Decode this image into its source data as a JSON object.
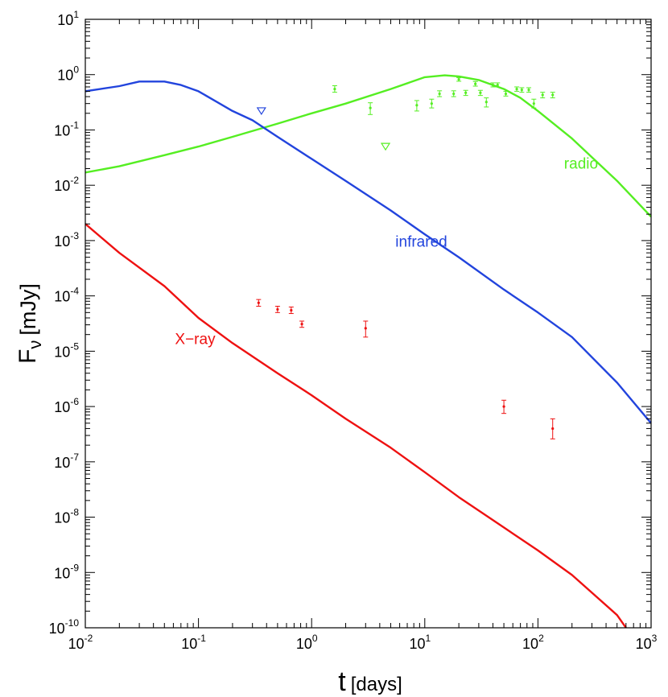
{
  "chart_data": {
    "type": "line",
    "xscale": "log",
    "yscale": "log",
    "xlim": [
      0.01,
      1000
    ],
    "ylim": [
      1e-10,
      10
    ],
    "xlabel": {
      "main": "t",
      "unit": "[days]"
    },
    "ylabel": {
      "main": "F",
      "sub": "ν",
      "unit": "[mJy]"
    },
    "x_ticks": [
      {
        "base": "10",
        "exp": "-2",
        "value": 0.01
      },
      {
        "base": "10",
        "exp": "-1",
        "value": 0.1
      },
      {
        "base": "10",
        "exp": "0",
        "value": 1
      },
      {
        "base": "10",
        "exp": "1",
        "value": 10
      },
      {
        "base": "10",
        "exp": "2",
        "value": 100
      },
      {
        "base": "10",
        "exp": "3",
        "value": 1000
      }
    ],
    "y_ticks": [
      {
        "base": "10",
        "exp": "1",
        "value": 10
      },
      {
        "base": "10",
        "exp": "0",
        "value": 1
      },
      {
        "base": "10",
        "exp": "-1",
        "value": 0.1
      },
      {
        "base": "10",
        "exp": "-2",
        "value": 0.01
      },
      {
        "base": "10",
        "exp": "-3",
        "value": 0.001
      },
      {
        "base": "10",
        "exp": "-4",
        "value": 0.0001
      },
      {
        "base": "10",
        "exp": "-5",
        "value": 1e-05
      },
      {
        "base": "10",
        "exp": "-6",
        "value": 1e-06
      },
      {
        "base": "10",
        "exp": "-7",
        "value": 1e-07
      },
      {
        "base": "10",
        "exp": "-8",
        "value": 1e-08
      },
      {
        "base": "10",
        "exp": "-9",
        "value": 1e-09
      },
      {
        "base": "10",
        "exp": "-10",
        "value": 1e-10
      }
    ],
    "series": [
      {
        "name": "radio",
        "label": "radio",
        "color": "#55ee22",
        "label_at": {
          "x": 170,
          "y": 0.02
        },
        "x": [
          0.01,
          0.02,
          0.05,
          0.1,
          0.2,
          0.5,
          1,
          2,
          5,
          10,
          15,
          20,
          30,
          50,
          70,
          100,
          200,
          500,
          1000
        ],
        "y": [
          0.017,
          0.022,
          0.035,
          0.05,
          0.075,
          0.13,
          0.2,
          0.3,
          0.55,
          0.9,
          0.97,
          0.93,
          0.8,
          0.55,
          0.38,
          0.22,
          0.07,
          0.012,
          0.0027
        ],
        "points": [
          {
            "x": 1.6,
            "y": 0.55,
            "lo": 0.48,
            "hi": 0.63
          },
          {
            "x": 3.3,
            "y": 0.25,
            "lo": 0.19,
            "hi": 0.31
          },
          {
            "x": 8.5,
            "y": 0.28,
            "lo": 0.22,
            "hi": 0.34
          },
          {
            "x": 11.5,
            "y": 0.3,
            "lo": 0.25,
            "hi": 0.36
          },
          {
            "x": 13.5,
            "y": 0.45,
            "lo": 0.4,
            "hi": 0.51
          },
          {
            "x": 18,
            "y": 0.45,
            "lo": 0.4,
            "hi": 0.51
          },
          {
            "x": 20,
            "y": 0.82,
            "lo": 0.76,
            "hi": 0.88
          },
          {
            "x": 23,
            "y": 0.47,
            "lo": 0.42,
            "hi": 0.52
          },
          {
            "x": 28,
            "y": 0.68,
            "lo": 0.62,
            "hi": 0.75
          },
          {
            "x": 31,
            "y": 0.47,
            "lo": 0.42,
            "hi": 0.52
          },
          {
            "x": 35,
            "y": 0.32,
            "lo": 0.26,
            "hi": 0.38
          },
          {
            "x": 40,
            "y": 0.65,
            "lo": 0.6,
            "hi": 0.71
          },
          {
            "x": 44,
            "y": 0.65,
            "lo": 0.6,
            "hi": 0.71
          },
          {
            "x": 52,
            "y": 0.45,
            "lo": 0.41,
            "hi": 0.5
          },
          {
            "x": 65,
            "y": 0.55,
            "lo": 0.5,
            "hi": 0.6
          },
          {
            "x": 72,
            "y": 0.53,
            "lo": 0.48,
            "hi": 0.58
          },
          {
            "x": 83,
            "y": 0.53,
            "lo": 0.48,
            "hi": 0.58
          },
          {
            "x": 92,
            "y": 0.3,
            "lo": 0.25,
            "hi": 0.36
          },
          {
            "x": 110,
            "y": 0.43,
            "lo": 0.38,
            "hi": 0.48
          },
          {
            "x": 135,
            "y": 0.43,
            "lo": 0.38,
            "hi": 0.48
          }
        ],
        "upper_limits": [
          {
            "x": 4.5,
            "y": 0.05
          }
        ]
      },
      {
        "name": "infrared",
        "label": "infrared",
        "color": "#2244dd",
        "label_at": {
          "x": 5.5,
          "y": 0.00078
        },
        "x": [
          0.01,
          0.02,
          0.03,
          0.05,
          0.07,
          0.1,
          0.2,
          0.3,
          0.5,
          1,
          2,
          5,
          10,
          20,
          50,
          100,
          200,
          500,
          1000
        ],
        "y": [
          0.5,
          0.62,
          0.75,
          0.75,
          0.65,
          0.5,
          0.22,
          0.15,
          0.075,
          0.03,
          0.012,
          0.0035,
          0.0013,
          0.0005,
          0.00013,
          5e-05,
          1.8e-05,
          2.7e-06,
          5e-07
        ],
        "upper_limits": [
          {
            "x": 0.36,
            "y": 0.22
          }
        ]
      },
      {
        "name": "X-ray",
        "label": "X−ray",
        "color": "#ee1111",
        "label_at": {
          "x": 0.062,
          "y": 1.35e-05
        },
        "x": [
          0.01,
          0.02,
          0.05,
          0.1,
          0.2,
          0.5,
          1,
          2,
          5,
          10,
          20,
          50,
          100,
          200,
          500,
          600
        ],
        "y": [
          0.002,
          0.0006,
          0.00015,
          4e-05,
          1.4e-05,
          4e-06,
          1.6e-06,
          6e-07,
          1.8e-07,
          6.5e-08,
          2.3e-08,
          6.5e-09,
          2.5e-09,
          9e-10,
          1.7e-10,
          1e-10
        ],
        "points": [
          {
            "x": 0.34,
            "y": 7.5e-05,
            "lo": 6.5e-05,
            "hi": 8.6e-05
          },
          {
            "x": 0.5,
            "y": 5.7e-05,
            "lo": 5e-05,
            "hi": 6.5e-05
          },
          {
            "x": 0.66,
            "y": 5.5e-05,
            "lo": 4.8e-05,
            "hi": 6.3e-05
          },
          {
            "x": 0.82,
            "y": 3.1e-05,
            "lo": 2.7e-05,
            "hi": 3.5e-05
          },
          {
            "x": 3.0,
            "y": 2.6e-05,
            "lo": 1.8e-05,
            "hi": 3.5e-05
          },
          {
            "x": 50,
            "y": 1e-06,
            "lo": 7.5e-07,
            "hi": 1.3e-06
          },
          {
            "x": 135,
            "y": 4e-07,
            "lo": 2.6e-07,
            "hi": 6e-07
          }
        ]
      }
    ]
  }
}
